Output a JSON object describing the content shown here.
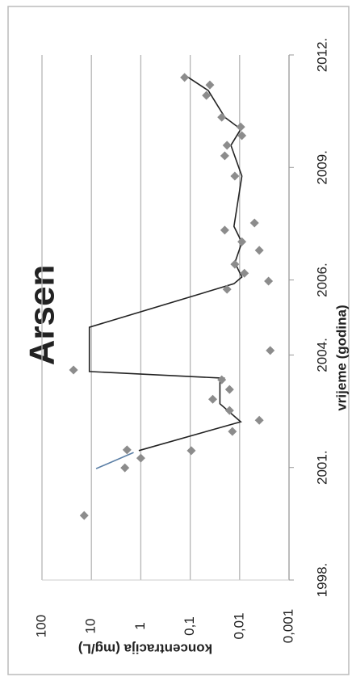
{
  "chart_data": {
    "type": "scatter",
    "title": "Arsen",
    "xlabel": "vrijeme (godina)",
    "ylabel": "koncentracija (mg/L)",
    "xlim": [
      1998,
      2012
    ],
    "xticks": [
      {
        "value": 1998,
        "label": "1998."
      },
      {
        "value": 2001,
        "label": "2001."
      },
      {
        "value": 2004,
        "label": "2004."
      },
      {
        "value": 2006,
        "label": "2006."
      },
      {
        "value": 2009,
        "label": "2009."
      },
      {
        "value": 2012,
        "label": "2012."
      }
    ],
    "ylim": [
      0.001,
      100
    ],
    "yticks": [
      100,
      10,
      1,
      {
        "value": 0.1,
        "label": "0,1"
      },
      {
        "value": 0.01,
        "label": "0,01"
      },
      {
        "value": 0.001,
        "label": "0,001"
      }
    ],
    "ylog": true,
    "grid": true,
    "rotation": -90,
    "points": {
      "color": "#8c8c8c",
      "x": [
        1999.72,
        2000.99,
        2001.47,
        2001.25,
        2001.45,
        2001.96,
        2002.26,
        2002.52,
        2002.82,
        2003.08,
        2003.34,
        2003.6,
        2004.12,
        2005.75,
        2005.97,
        2006.18,
        2006.42,
        2006.79,
        2007.02,
        2007.33,
        2007.52,
        2008.77,
        2009.31,
        2009.59,
        2009.85,
        2010.08,
        2010.34,
        2010.92,
        2011.2,
        2011.4
      ],
      "values": [
        14,
        2.1,
        1.9,
        1,
        0.095,
        0.014,
        0.004,
        0.016,
        0.035,
        0.016,
        0.023,
        23,
        0.0024,
        0.018,
        0.0026,
        0.008,
        0.0125,
        0.004,
        0.009,
        0.02,
        0.005,
        0.0125,
        0.02,
        0.018,
        0.009,
        0.0095,
        0.023,
        0.047,
        0.04,
        0.13
      ]
    },
    "lines": [
      {
        "color": "#5b7fa6",
        "x": [
          2000.97,
          2001.4
        ],
        "values": [
          8,
          1.4
        ]
      },
      {
        "color": "#222222",
        "x": [
          2001.45,
          2002.22,
          2002.7,
          2003.34,
          2003.38,
          2003.56,
          2004.74,
          2005.9,
          2006.08,
          2006.46,
          2007.0,
          2007.43,
          2008.77,
          2009.59,
          2010.02,
          2010.34,
          2011.05,
          2011.42
        ],
        "values": [
          1.1,
          0.0095,
          0.025,
          0.025,
          0.02,
          11,
          11,
          0.013,
          0.009,
          0.0125,
          0.009,
          0.013,
          0.009,
          0.015,
          0.0095,
          0.02,
          0.043,
          0.115
        ]
      }
    ]
  }
}
